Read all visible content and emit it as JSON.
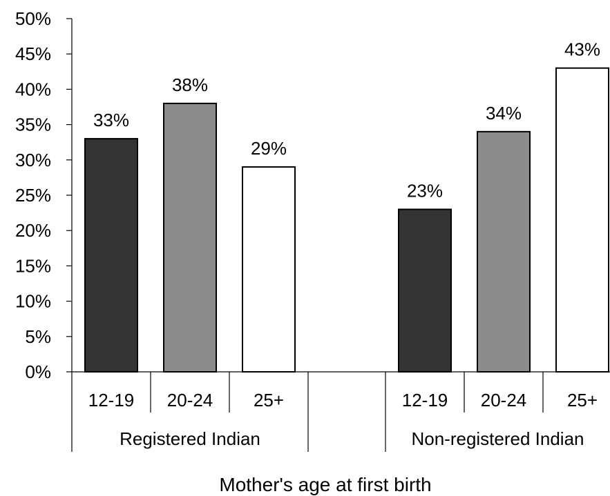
{
  "chart_data": {
    "type": "bar",
    "title": "",
    "xlabel": "Mother's age at first birth",
    "ylabel": "",
    "ylim": [
      0,
      0.5
    ],
    "y_ticks": [
      0,
      0.05,
      0.1,
      0.15,
      0.2,
      0.25,
      0.3,
      0.35,
      0.4,
      0.45,
      0.5
    ],
    "y_tick_labels": [
      "0%",
      "5%",
      "10%",
      "15%",
      "20%",
      "25%",
      "30%",
      "35%",
      "40%",
      "45%",
      "50%"
    ],
    "legend": "none",
    "grid": false,
    "groups": [
      {
        "label": "Registered Indian",
        "bars": [
          {
            "category": "12-19",
            "value": 0.33,
            "label": "33%",
            "color": "#333333"
          },
          {
            "category": "20-24",
            "value": 0.38,
            "label": "38%",
            "color": "#8c8c8c"
          },
          {
            "category": "25+",
            "value": 0.29,
            "label": "29%",
            "color": "#ffffff"
          }
        ]
      },
      {
        "label": "Non-registered Indian",
        "bars": [
          {
            "category": "12-19",
            "value": 0.23,
            "label": "23%",
            "color": "#333333"
          },
          {
            "category": "20-24",
            "value": 0.34,
            "label": "34%",
            "color": "#8c8c8c"
          },
          {
            "category": "25+",
            "value": 0.43,
            "label": "43%",
            "color": "#ffffff"
          }
        ]
      }
    ]
  }
}
